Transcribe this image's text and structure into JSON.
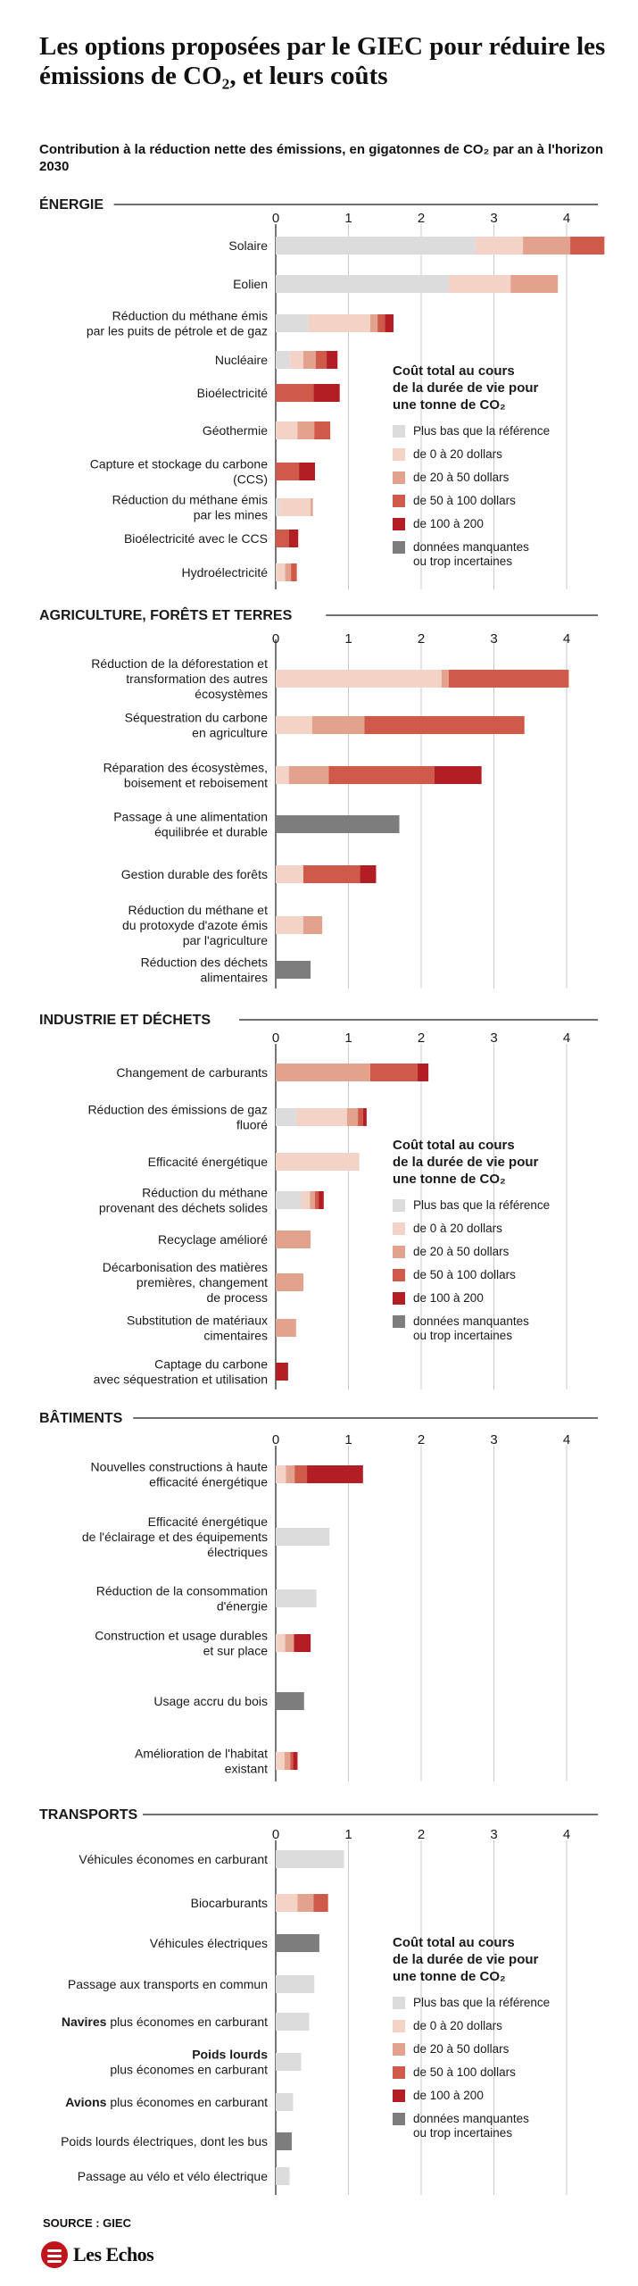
{
  "title": "Les options proposées par le GIEC pour réduire les émissions de CO₂, et leurs coûts",
  "subtitle": "Contribution à la réduction nette des émissions, en gigatonnes de CO₂ par an à l'horizon 2030",
  "source": "SOURCE : GIEC",
  "logo": "Les Echos",
  "colors": {
    "c0": "#dcdcdc",
    "c1": "#f2d3c6",
    "c2": "#e2a28d",
    "c3": "#cf5a4a",
    "c4": "#b21e24",
    "c5": "#7d7d7d",
    "axis": "#1a1a1a",
    "grid": "#c8c8c8",
    "text": "#1a1a1a"
  },
  "legend": {
    "title_lines": [
      "Coût total au cours",
      "de la durée de vie pour",
      "une tonne de CO₂"
    ],
    "items": [
      {
        "key": "c0",
        "label_lines": [
          "Plus bas que la référence"
        ]
      },
      {
        "key": "c1",
        "label_lines": [
          "de 0 à 20 dollars"
        ]
      },
      {
        "key": "c2",
        "label_lines": [
          "de 20 à 50 dollars"
        ]
      },
      {
        "key": "c3",
        "label_lines": [
          "de 50 à 100 dollars"
        ]
      },
      {
        "key": "c4",
        "label_lines": [
          "de 100 à 200"
        ]
      },
      {
        "key": "c5",
        "label_lines": [
          "données manquantes",
          "ou trop incertaines"
        ]
      }
    ]
  },
  "chart_data": {
    "type": "bar",
    "orientation": "horizontal",
    "stacked": true,
    "xlim": [
      0,
      4.5
    ],
    "ticks": [
      "0",
      "1",
      "2",
      "3",
      "4"
    ],
    "sections": [
      {
        "title": "ÉNERGIE",
        "rows": [
          {
            "label_lines": [
              "Solaire"
            ],
            "segments": [
              [
                "c0",
                2.75
              ],
              [
                "c1",
                0.65
              ],
              [
                "c2",
                0.65
              ],
              [
                "c3",
                0.47
              ]
            ]
          },
          {
            "label_lines": [
              "Eolien"
            ],
            "segments": [
              [
                "c0",
                2.38
              ],
              [
                "c1",
                0.85
              ],
              [
                "c2",
                0.65
              ]
            ]
          },
          {
            "label_lines": [
              "Réduction du méthane émis",
              "par les puits de pétrole et de gaz"
            ],
            "segments": [
              [
                "c0",
                0.45
              ],
              [
                "c1",
                0.85
              ],
              [
                "c2",
                0.1
              ],
              [
                "c3",
                0.1
              ],
              [
                "c4",
                0.12
              ]
            ]
          },
          {
            "label_lines": [
              "Nucléaire"
            ],
            "segments": [
              [
                "c0",
                0.2
              ],
              [
                "c1",
                0.18
              ],
              [
                "c2",
                0.17
              ],
              [
                "c3",
                0.15
              ],
              [
                "c4",
                0.15
              ]
            ]
          },
          {
            "label_lines": [
              "Bioélectricité"
            ],
            "segments": [
              [
                "c3",
                0.52
              ],
              [
                "c4",
                0.36
              ]
            ]
          },
          {
            "label_lines": [
              "Géothermie"
            ],
            "segments": [
              [
                "c1",
                0.3
              ],
              [
                "c2",
                0.23
              ],
              [
                "c3",
                0.22
              ]
            ]
          },
          {
            "label_lines": [
              "Capture et stockage du carbone",
              "(CCS)"
            ],
            "segments": [
              [
                "c3",
                0.32
              ],
              [
                "c4",
                0.22
              ]
            ]
          },
          {
            "label_lines": [
              "Réduction du méthane émis",
              "par les mines"
            ],
            "segments": [
              [
                "c0",
                0.05
              ],
              [
                "c1",
                0.43
              ],
              [
                "c2",
                0.03
              ]
            ]
          },
          {
            "label_lines": [
              "Bioélectricité avec le CCS"
            ],
            "segments": [
              [
                "c3",
                0.18
              ],
              [
                "c4",
                0.13
              ]
            ]
          },
          {
            "label_lines": [
              "Hydroélectricité"
            ],
            "segments": [
              [
                "c1",
                0.13
              ],
              [
                "c2",
                0.08
              ],
              [
                "c3",
                0.08
              ]
            ]
          }
        ]
      },
      {
        "title": "AGRICULTURE, FORÊTS ET TERRES",
        "rows": [
          {
            "label_lines": [
              "Réduction de la déforestation et",
              "transformation des autres",
              "écosystèmes"
            ],
            "segments": [
              [
                "c1",
                2.28
              ],
              [
                "c2",
                0.1
              ],
              [
                "c3",
                1.65
              ]
            ]
          },
          {
            "label_lines": [
              "Séquestration du carbone",
              "en agriculture"
            ],
            "segments": [
              [
                "c1",
                0.5
              ],
              [
                "c2",
                0.72
              ],
              [
                "c3",
                2.2
              ]
            ]
          },
          {
            "label_lines": [
              "Réparation des écosystèmes,",
              "boisement et reboisement"
            ],
            "segments": [
              [
                "c1",
                0.18
              ],
              [
                "c2",
                0.55
              ],
              [
                "c3",
                1.45
              ],
              [
                "c4",
                0.65
              ]
            ]
          },
          {
            "label_lines": [
              "Passage à une alimentation",
              "équilibrée et durable"
            ],
            "segments": [
              [
                "c5",
                1.7
              ]
            ]
          },
          {
            "label_lines": [
              "Gestion durable des forêts"
            ],
            "segments": [
              [
                "c1",
                0.38
              ],
              [
                "c3",
                0.78
              ],
              [
                "c4",
                0.22
              ]
            ]
          },
          {
            "label_lines": [
              "Réduction du méthane et",
              "du protoxyde d'azote émis",
              "par l'agriculture"
            ],
            "segments": [
              [
                "c1",
                0.38
              ],
              [
                "c2",
                0.26
              ]
            ]
          },
          {
            "label_lines": [
              "Réduction des déchets",
              "alimentaires"
            ],
            "segments": [
              [
                "c5",
                0.48
              ]
            ]
          }
        ]
      },
      {
        "title": "INDUSTRIE ET DÉCHETS",
        "rows": [
          {
            "label_lines": [
              "Changement de carburants"
            ],
            "segments": [
              [
                "c2",
                1.3
              ],
              [
                "c3",
                0.65
              ],
              [
                "c4",
                0.15
              ]
            ]
          },
          {
            "label_lines": [
              "Réduction des émissions de gaz",
              "fluoré"
            ],
            "segments": [
              [
                "c0",
                0.28
              ],
              [
                "c1",
                0.7
              ],
              [
                "c2",
                0.15
              ],
              [
                "c3",
                0.07
              ],
              [
                "c4",
                0.05
              ]
            ]
          },
          {
            "label_lines": [
              "Efficacité énergétique"
            ],
            "segments": [
              [
                "c1",
                1.15
              ]
            ]
          },
          {
            "label_lines": [
              "Réduction du méthane",
              "provenant des déchets solides"
            ],
            "segments": [
              [
                "c0",
                0.35
              ],
              [
                "c1",
                0.12
              ],
              [
                "c2",
                0.07
              ],
              [
                "c3",
                0.05
              ],
              [
                "c4",
                0.07
              ]
            ]
          },
          {
            "label_lines": [
              "Recyclage amélioré"
            ],
            "segments": [
              [
                "c2",
                0.48
              ]
            ]
          },
          {
            "label_lines": [
              "Décarbonisation des matières",
              "premières, changement",
              "de process"
            ],
            "segments": [
              [
                "c2",
                0.38
              ]
            ]
          },
          {
            "label_lines": [
              "Substitution de matériaux",
              "cimentaires"
            ],
            "segments": [
              [
                "c2",
                0.28
              ]
            ]
          },
          {
            "label_lines": [
              "Captage du carbone",
              "avec séquestration et utilisation"
            ],
            "segments": [
              [
                "c4",
                0.17
              ]
            ]
          }
        ]
      },
      {
        "title": "BÂTIMENTS",
        "rows": [
          {
            "label_lines": [
              "Nouvelles constructions à haute",
              "efficacité énergétique"
            ],
            "segments": [
              [
                "c1",
                0.14
              ],
              [
                "c2",
                0.12
              ],
              [
                "c3",
                0.17
              ],
              [
                "c4",
                0.77
              ]
            ]
          },
          {
            "label_lines": [
              "Efficacité énergétique",
              "de l'éclairage et des équipements",
              "électriques"
            ],
            "segments": [
              [
                "c0",
                0.74
              ]
            ]
          },
          {
            "label_lines": [
              "Réduction de la  consommation",
              "d'énergie"
            ],
            "segments": [
              [
                "c0",
                0.56
              ]
            ]
          },
          {
            "label_lines": [
              "Construction et usage durables",
              "et sur place"
            ],
            "segments": [
              [
                "c1",
                0.13
              ],
              [
                "c2",
                0.12
              ],
              [
                "c4",
                0.23
              ]
            ]
          },
          {
            "label_lines": [
              "Usage accru du bois"
            ],
            "segments": [
              [
                "c5",
                0.39
              ]
            ]
          },
          {
            "label_lines": [
              "Amélioration de l'habitat",
              "existant"
            ],
            "segments": [
              [
                "c1",
                0.12
              ],
              [
                "c2",
                0.08
              ],
              [
                "c3",
                0.04
              ],
              [
                "c4",
                0.06
              ]
            ]
          }
        ]
      },
      {
        "title": "TRANSPORTS",
        "rows": [
          {
            "label_lines": [
              "Véhicules économes en carburant"
            ],
            "segments": [
              [
                "c0",
                0.94
              ]
            ]
          },
          {
            "label_lines": [
              "Biocarburants"
            ],
            "segments": [
              [
                "c1",
                0.3
              ],
              [
                "c2",
                0.22
              ],
              [
                "c3",
                0.2
              ]
            ]
          },
          {
            "label_lines": [
              "Véhicules électriques"
            ],
            "segments": [
              [
                "c5",
                0.6
              ]
            ]
          },
          {
            "label_lines": [
              "Passage aux transports en commun"
            ],
            "segments": [
              [
                "c0",
                0.53
              ]
            ]
          },
          {
            "label_lines": [
              "Navires plus économes en carburant"
            ],
            "bold_words": 1,
            "segments": [
              [
                "c0",
                0.46
              ]
            ]
          },
          {
            "label_lines": [
              "Poids lourds",
              "plus économes en carburant"
            ],
            "bold_first_line": true,
            "segments": [
              [
                "c0",
                0.35
              ]
            ]
          },
          {
            "label_lines": [
              "Avions plus économes en carburant"
            ],
            "bold_words": 1,
            "segments": [
              [
                "c0",
                0.24
              ]
            ]
          },
          {
            "label_lines": [
              "Poids lourds électriques, dont les bus"
            ],
            "segments": [
              [
                "c5",
                0.22
              ]
            ]
          },
          {
            "label_lines": [
              "Passage au vélo et vélo électrique"
            ],
            "segments": [
              [
                "c0",
                0.19
              ]
            ]
          }
        ]
      }
    ]
  }
}
